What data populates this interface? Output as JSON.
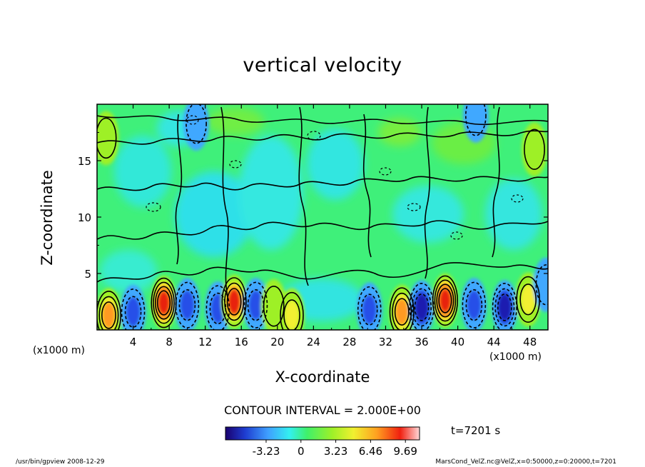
{
  "chart_data": {
    "type": "heatmap",
    "title": "vertical velocity",
    "xlabel": "X-coordinate",
    "ylabel": "Z-coordinate",
    "x_unit": "(x1000 m)",
    "x_ticks": [
      4,
      8,
      12,
      16,
      20,
      24,
      28,
      32,
      36,
      40,
      44,
      48
    ],
    "y_ticks": [
      5,
      10,
      15
    ],
    "xlim": [
      0,
      50
    ],
    "ylim": [
      0,
      20
    ],
    "colorbar": {
      "ticks": [
        "-3.23",
        "0",
        "3.23",
        "6.46",
        "9.69"
      ],
      "tick_values": [
        -3.23,
        0,
        3.23,
        6.46,
        9.69
      ],
      "range": [
        -7,
        11
      ]
    },
    "contour_interval": "CONTOUR INTERVAL = 2.000E+00",
    "time": "t=7201 s",
    "cells": [
      {
        "x": 1.3,
        "z": 1.3,
        "v": 6.5
      },
      {
        "x": 4.0,
        "z": 1.6,
        "v": -5.5
      },
      {
        "x": 7.4,
        "z": 2.4,
        "v": 9.0
      },
      {
        "x": 10.0,
        "z": 2.2,
        "v": -4.5
      },
      {
        "x": 13.4,
        "z": 1.9,
        "v": -5.0
      },
      {
        "x": 15.2,
        "z": 2.5,
        "v": 8.5
      },
      {
        "x": 17.6,
        "z": 2.2,
        "v": -4.0
      },
      {
        "x": 19.6,
        "z": 2.1,
        "v": 3.5
      },
      {
        "x": 21.6,
        "z": 1.3,
        "v": 4.0
      },
      {
        "x": 30.2,
        "z": 1.8,
        "v": -5.0
      },
      {
        "x": 33.8,
        "z": 1.6,
        "v": 6.5
      },
      {
        "x": 36.0,
        "z": 2.0,
        "v": -6.5
      },
      {
        "x": 38.6,
        "z": 2.6,
        "v": 9.5
      },
      {
        "x": 41.8,
        "z": 2.2,
        "v": -5.5
      },
      {
        "x": 45.2,
        "z": 2.0,
        "v": -6.5
      },
      {
        "x": 47.8,
        "z": 2.7,
        "v": 5.0
      },
      {
        "x": 49.8,
        "z": 4.0,
        "v": -3.0
      },
      {
        "x": 11.0,
        "z": 18.3,
        "v": -3.0
      },
      {
        "x": 42.0,
        "z": 19.0,
        "v": -2.5
      },
      {
        "x": 1.0,
        "z": 17.0,
        "v": 3.0
      },
      {
        "x": 48.5,
        "z": 16.0,
        "v": 3.0
      }
    ]
  },
  "footer": {
    "left": "/usr/bin/gpview   2008-12-29",
    "right": "MarsCond_VelZ.nc@VelZ,x=0:50000,z=0:20000,t=7201"
  }
}
